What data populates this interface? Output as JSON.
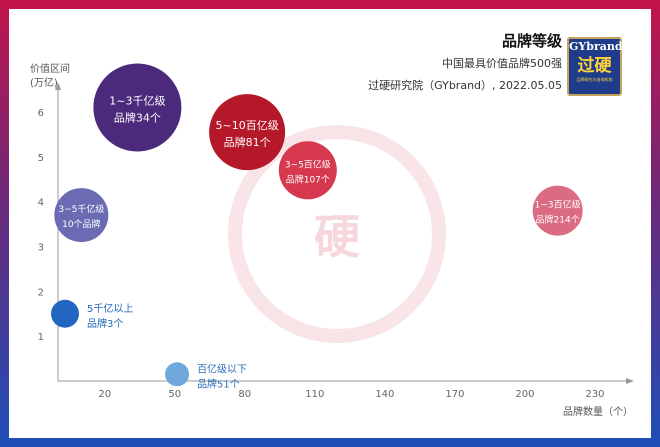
{
  "header": {
    "title": "品牌等级",
    "subtitle1": "中国最具价值品牌500强",
    "subtitle2": "过硬研究院（GYbrand）, 2022.05.05"
  },
  "logo": {
    "line1": "GYbrand",
    "line2": "过硬",
    "line3": "品牌研究与咨询机构"
  },
  "watermark": {
    "text": "硬"
  },
  "colors": {
    "frame_top": "#c2144a",
    "frame_bottom": "#1e4fb8"
  },
  "chart_data": {
    "type": "bubble",
    "ylabel_line1": "价值区间",
    "ylabel_line2": "(万亿)",
    "xlabel": "品牌数量（个）",
    "xlim": [
      0,
      230
    ],
    "ylim": [
      0,
      6.5
    ],
    "x_ticks": [
      20,
      50,
      80,
      110,
      140,
      170,
      200,
      230
    ],
    "y_ticks": [
      1,
      2,
      3,
      4,
      5,
      6
    ],
    "bubbles": [
      {
        "x": 34,
        "y": 6.1,
        "size": 44,
        "color": "#4b2a7b",
        "label_line1": "1~3千亿级",
        "label_line2": "品牌34个",
        "label_inside": true
      },
      {
        "x": 81,
        "y": 5.55,
        "size": 38,
        "color": "#b51828",
        "label_line1": "5~10百亿级",
        "label_line2": "品牌81个",
        "label_inside": true
      },
      {
        "x": 107,
        "y": 4.7,
        "size": 29,
        "color": "#d6394e",
        "label_line1": "3~5百亿级",
        "label_line2": "品牌107个",
        "label_inside": true
      },
      {
        "x": 214,
        "y": 3.8,
        "size": 25,
        "color": "#db6b82",
        "label_line1": "1~3百亿级",
        "label_line2": "品牌214个",
        "label_inside": true
      },
      {
        "x": 10,
        "y": 3.7,
        "size": 27,
        "color": "#6a6bb3",
        "label_line1": "3~5千亿级",
        "label_line2": "10个品牌",
        "label_inside": true
      },
      {
        "x": 3,
        "y": 1.5,
        "size": 14,
        "color": "#2166c0",
        "label_line1": "5千亿以上",
        "label_line2": "品牌3个",
        "label_inside": false
      },
      {
        "x": 51,
        "y": 0.15,
        "size": 12,
        "color": "#6fa8dc",
        "label_line1": "百亿级以下",
        "label_line2": "品牌51个",
        "label_inside": false
      }
    ]
  }
}
